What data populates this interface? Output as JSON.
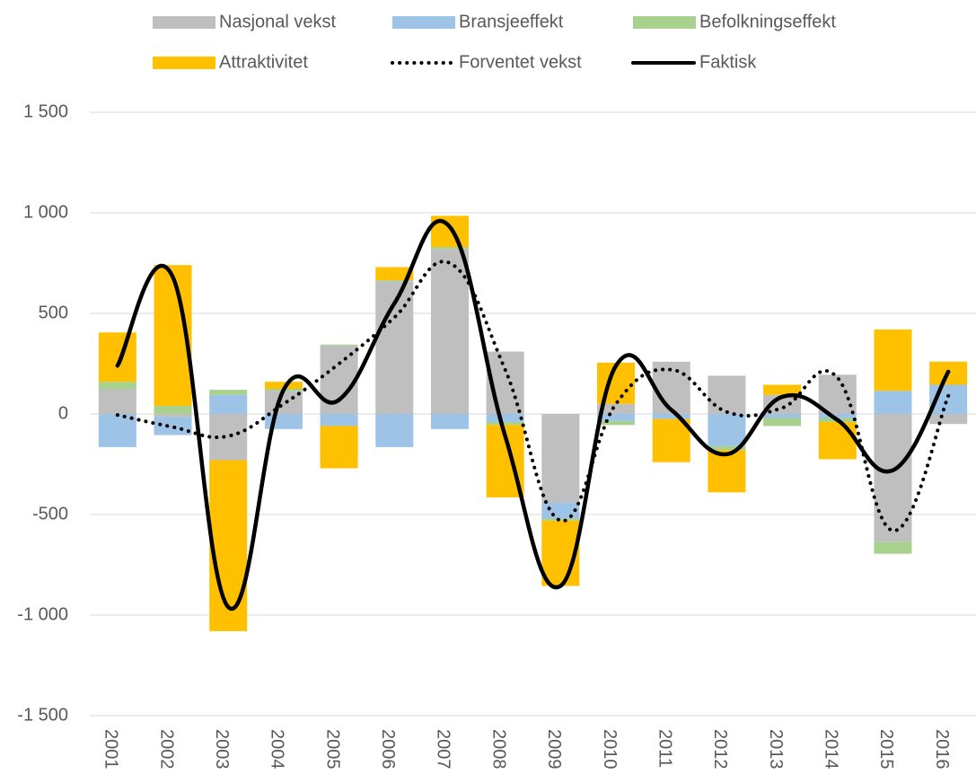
{
  "chart_data": {
    "type": "bar",
    "stacked": true,
    "categories": [
      "2001",
      "2002",
      "2003",
      "2004",
      "2005",
      "2006",
      "2007",
      "2008",
      "2009",
      "2010",
      "2011",
      "2012",
      "2013",
      "2014",
      "2015",
      "2016"
    ],
    "series": [
      {
        "name": "Nasjonal vekst",
        "color": "#bfbfbf",
        "values": [
          125,
          -15,
          -230,
          115,
          340,
          660,
          820,
          310,
          -440,
          50,
          260,
          190,
          95,
          195,
          -635,
          -50
        ]
      },
      {
        "name": "Bransjeeffekt",
        "color": "#9dc3e6",
        "values": [
          -165,
          -90,
          95,
          -75,
          -60,
          -165,
          -75,
          -40,
          -80,
          -35,
          -25,
          -160,
          -20,
          -20,
          115,
          145
        ]
      },
      {
        "name": "Befolkningseffekt",
        "color": "#a9d18e",
        "values": [
          35,
          40,
          25,
          10,
          5,
          5,
          10,
          -15,
          -10,
          -20,
          0,
          -20,
          -40,
          -20,
          -60,
          0
        ]
      },
      {
        "name": "Attraktivitet",
        "color": "#ffc000",
        "values": [
          245,
          700,
          -850,
          35,
          -210,
          65,
          155,
          -360,
          -325,
          205,
          -215,
          -210,
          50,
          -185,
          305,
          115
        ]
      },
      {
        "name": "Forventet vekst",
        "color": "#000000",
        "type": "line",
        "dash": "dotted",
        "values": [
          -5,
          -65,
          -110,
          50,
          250,
          480,
          750,
          220,
          -530,
          50,
          220,
          10,
          30,
          180,
          -580,
          90
        ]
      },
      {
        "name": "Faktisk",
        "color": "#000000",
        "type": "line",
        "values": [
          240,
          680,
          -960,
          120,
          70,
          550,
          930,
          -110,
          -855,
          240,
          20,
          -200,
          85,
          -30,
          -280,
          210
        ]
      }
    ],
    "ylim": [
      -1500,
      1500
    ],
    "yticks": [
      {
        "value": -1500,
        "label": "-1 500"
      },
      {
        "value": -1000,
        "label": "-1 000"
      },
      -500,
      0,
      500,
      {
        "value": 1000,
        "label": "1 000"
      },
      {
        "value": 1500,
        "label": "1 500"
      }
    ],
    "grid": true,
    "legend": "top"
  }
}
